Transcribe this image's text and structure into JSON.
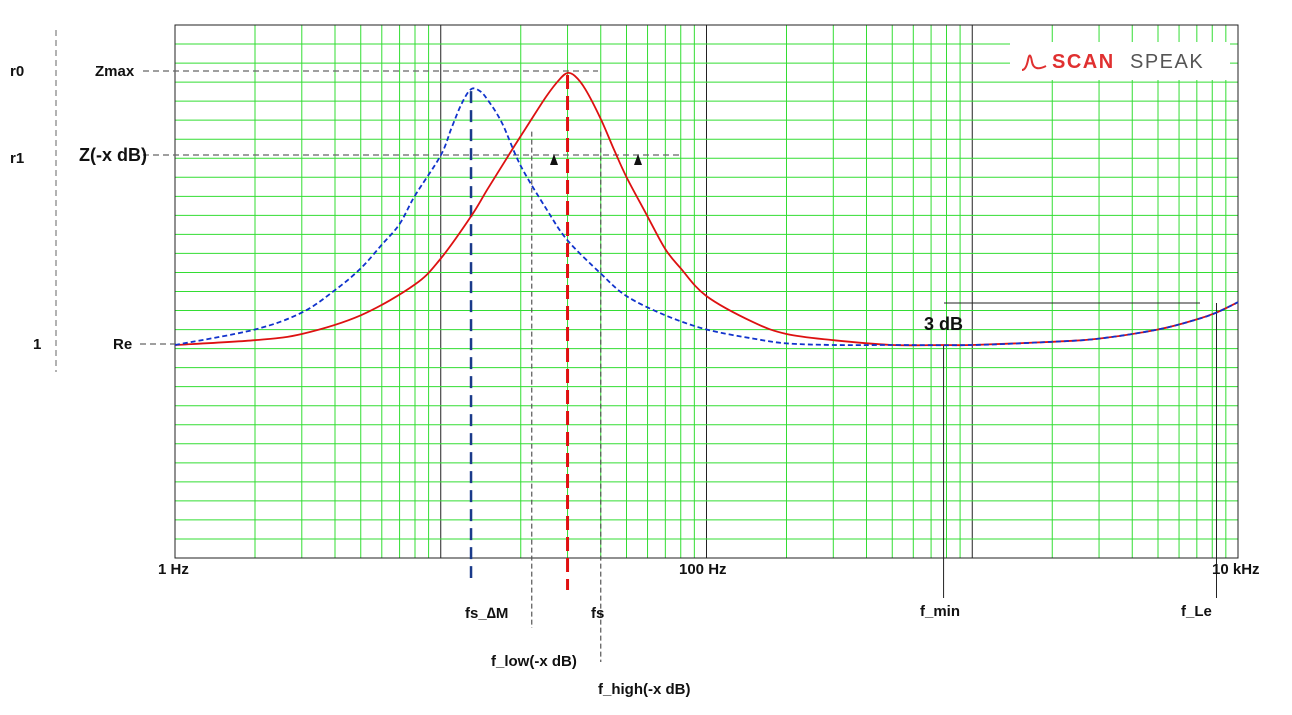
{
  "brand": {
    "text_a": "SCAN",
    "text_b": "SPEAK",
    "logo_icon": "impedance-curve-icon",
    "color_a": "#e03030",
    "color_b": "#555555"
  },
  "chart_data": {
    "type": "line",
    "xscale": "log",
    "xlim_hz": [
      1,
      10000
    ],
    "grid": true,
    "grid_color": "#33dd33",
    "x_tick_labels": [
      {
        "value": 1,
        "label": "1 Hz"
      },
      {
        "value": 100,
        "label": "100 Hz"
      },
      {
        "value": 10000,
        "label": "10 kHz"
      }
    ],
    "y_levels": [
      {
        "key": "zmax",
        "left_label": "r0",
        "right_label": "Zmax"
      },
      {
        "key": "zx",
        "left_label": "r1",
        "right_label": "Z(-x dB)"
      },
      {
        "key": "re",
        "left_label": "1",
        "right_label": "Re"
      }
    ],
    "markers": [
      {
        "key": "fs_dm",
        "freq_hz": 13,
        "label": "fs_∆M",
        "style": "dash",
        "color": "#1a3a8a"
      },
      {
        "key": "fs",
        "freq_hz": 30,
        "label": "fs",
        "style": "dash",
        "color": "#e01010"
      },
      {
        "key": "f_low",
        "freq_hz": 22,
        "label": "f_low(-x dB)",
        "style": "dotted",
        "color": "#555555"
      },
      {
        "key": "f_high",
        "freq_hz": 40,
        "label": "f_high(-x dB)",
        "style": "dotted",
        "color": "#555555"
      },
      {
        "key": "f_min",
        "freq_hz": 780,
        "label": "f_min",
        "style": "solid",
        "color": "#222222"
      },
      {
        "key": "f_le",
        "freq_hz": 8300,
        "label": "f_Le",
        "style": "solid",
        "color": "#222222"
      }
    ],
    "annotation_3db": "3 dB",
    "series": [
      {
        "color": "#dd1111",
        "style": "solid",
        "points": [
          [
            1,
            1.0
          ],
          [
            2,
            1.03
          ],
          [
            3,
            1.07
          ],
          [
            5,
            1.2
          ],
          [
            8,
            1.45
          ],
          [
            10,
            1.7
          ],
          [
            13,
            2.2
          ],
          [
            15,
            2.6
          ],
          [
            18,
            3.2
          ],
          [
            20,
            3.6
          ],
          [
            22,
            4.0
          ],
          [
            25,
            4.6
          ],
          [
            28,
            5.1
          ],
          [
            30,
            5.3
          ],
          [
            32,
            5.2
          ],
          [
            35,
            4.8
          ],
          [
            40,
            4.0
          ],
          [
            45,
            3.3
          ],
          [
            50,
            2.8
          ],
          [
            60,
            2.2
          ],
          [
            70,
            1.8
          ],
          [
            80,
            1.6
          ],
          [
            100,
            1.35
          ],
          [
            150,
            1.15
          ],
          [
            200,
            1.07
          ],
          [
            300,
            1.03
          ],
          [
            500,
            1.0
          ],
          [
            780,
            1.0
          ],
          [
            1000,
            1.0
          ],
          [
            2000,
            1.02
          ],
          [
            3000,
            1.04
          ],
          [
            5000,
            1.1
          ],
          [
            7000,
            1.17
          ],
          [
            8300,
            1.22
          ],
          [
            10000,
            1.3
          ]
        ]
      },
      {
        "color": "#1133cc",
        "style": "dash",
        "points": [
          [
            1,
            1.0
          ],
          [
            2,
            1.1
          ],
          [
            3,
            1.22
          ],
          [
            4,
            1.4
          ],
          [
            5,
            1.6
          ],
          [
            6,
            1.85
          ],
          [
            7,
            2.1
          ],
          [
            8,
            2.5
          ],
          [
            10,
            3.2
          ],
          [
            11,
            3.8
          ],
          [
            12,
            4.4
          ],
          [
            13,
            4.8
          ],
          [
            14,
            4.75
          ],
          [
            15,
            4.5
          ],
          [
            17,
            3.9
          ],
          [
            20,
            3.0
          ],
          [
            25,
            2.3
          ],
          [
            30,
            1.9
          ],
          [
            40,
            1.55
          ],
          [
            50,
            1.35
          ],
          [
            70,
            1.2
          ],
          [
            100,
            1.1
          ],
          [
            150,
            1.04
          ],
          [
            200,
            1.01
          ],
          [
            300,
            1.0
          ],
          [
            500,
            1.0
          ],
          [
            1000,
            1.0
          ],
          [
            2000,
            1.02
          ],
          [
            3000,
            1.04
          ],
          [
            5000,
            1.1
          ],
          [
            7000,
            1.17
          ],
          [
            8300,
            1.22
          ],
          [
            10000,
            1.3
          ]
        ]
      }
    ]
  }
}
